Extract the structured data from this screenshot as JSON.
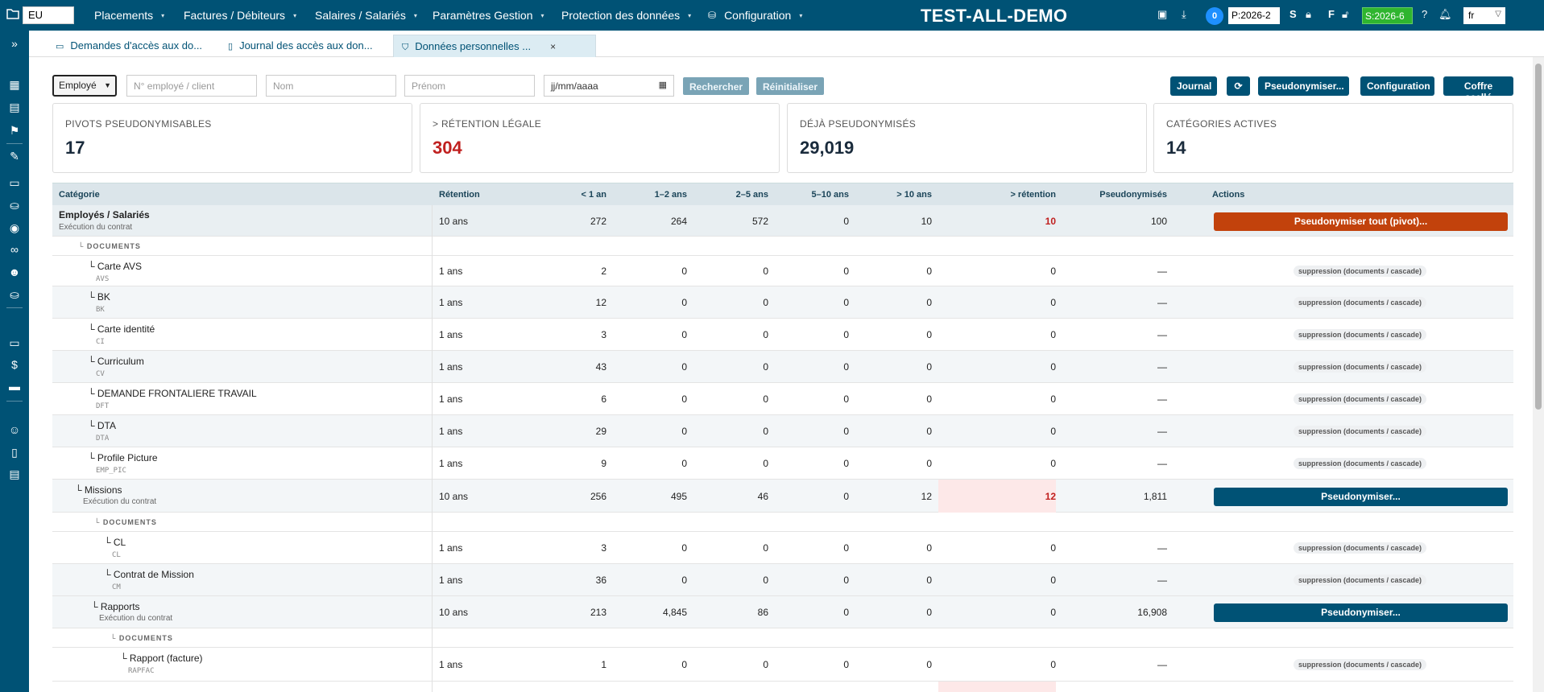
{
  "topbar": {
    "region": "EU",
    "menu": [
      "Placements",
      "Factures / Débiteurs",
      "Salaires / Salariés",
      "Paramètres Gestion",
      "Protection des données",
      "Configuration"
    ],
    "brand": "TEST-ALL-DEMO",
    "notif_count": "0",
    "period_p": "P:2026-2",
    "s_label": "S",
    "f_label": "F",
    "period_s": "S:2026-6",
    "lang": "fr"
  },
  "tabs": [
    {
      "label": "Demandes d'accès aux do...",
      "icon": "inbox-icon"
    },
    {
      "label": "Journal des accès aux don...",
      "icon": "file-icon"
    },
    {
      "label": "Données personnelles ...",
      "icon": "shield-icon"
    }
  ],
  "filters": {
    "type_select": "Employé",
    "employee_placeholder": "N° employé / client",
    "lastname_placeholder": "Nom",
    "firstname_placeholder": "Prénom",
    "date_placeholder": "jj/mm/aaaa",
    "search_label": "Rechercher",
    "reset_label": "Réinitialiser"
  },
  "toolbar": {
    "journal": "Journal",
    "pseudonymize": "Pseudonymiser...",
    "configuration": "Configuration",
    "vault": "Coffre scellé"
  },
  "stats": [
    {
      "label": "PIVOTS PSEUDONYMISABLES",
      "value": "17"
    },
    {
      "label": "> RÉTENTION LÉGALE",
      "value": "304"
    },
    {
      "label": "DÉJÀ PSEUDONYMISÉS",
      "value": "29,019"
    },
    {
      "label": "CATÉGORIES ACTIVES",
      "value": "14"
    }
  ],
  "table": {
    "headers": [
      "Catégorie",
      "Rétention",
      "< 1 an",
      "1–2 ans",
      "2–5 ans",
      "5–10 ans",
      "> 10 ans",
      "> rétention",
      "Pseudonymisés",
      "Actions"
    ],
    "documents_label": "DOCUMENTS",
    "chip_label": "suppression (documents / cascade)",
    "rows": {
      "emp": {
        "name": "Employés / Salariés",
        "sub": "Exécution du contrat",
        "ret": "10 ans",
        "c": [
          "272",
          "264",
          "572",
          "0",
          "10",
          "10",
          "100"
        ],
        "action": "Pseudonymiser tout (pivot)..."
      },
      "avs": {
        "name": "Carte AVS",
        "code": "AVS",
        "ret": "1 ans",
        "c": [
          "2",
          "0",
          "0",
          "0",
          "0",
          "0",
          "—"
        ]
      },
      "bk": {
        "name": "BK",
        "code": "BK",
        "ret": "1 ans",
        "c": [
          "12",
          "0",
          "0",
          "0",
          "0",
          "0",
          "—"
        ]
      },
      "ci": {
        "name": "Carte identité",
        "code": "CI",
        "ret": "1 ans",
        "c": [
          "3",
          "0",
          "0",
          "0",
          "0",
          "0",
          "—"
        ]
      },
      "cv": {
        "name": "Curriculum",
        "code": "CV",
        "ret": "1 ans",
        "c": [
          "43",
          "0",
          "0",
          "0",
          "0",
          "0",
          "—"
        ]
      },
      "dft": {
        "name": "DEMANDE FRONTALIERE TRAVAIL",
        "code": "DFT",
        "ret": "1 ans",
        "c": [
          "6",
          "0",
          "0",
          "0",
          "0",
          "0",
          "—"
        ]
      },
      "dta": {
        "name": "DTA",
        "code": "DTA",
        "ret": "1 ans",
        "c": [
          "29",
          "0",
          "0",
          "0",
          "0",
          "0",
          "—"
        ]
      },
      "pic": {
        "name": "Profile Picture",
        "code": "EMP_PIC",
        "ret": "1 ans",
        "c": [
          "9",
          "0",
          "0",
          "0",
          "0",
          "0",
          "—"
        ]
      },
      "mis": {
        "name": "Missions",
        "sub": "Exécution du contrat",
        "ret": "10 ans",
        "c": [
          "256",
          "495",
          "46",
          "0",
          "12",
          "12",
          "1,811"
        ],
        "action": "Pseudonymiser..."
      },
      "cl": {
        "name": "CL",
        "code": "CL",
        "ret": "1 ans",
        "c": [
          "3",
          "0",
          "0",
          "0",
          "0",
          "0",
          "—"
        ]
      },
      "cm": {
        "name": "Contrat de Mission",
        "code": "CM",
        "ret": "1 ans",
        "c": [
          "36",
          "0",
          "0",
          "0",
          "0",
          "0",
          "—"
        ]
      },
      "rap": {
        "name": "Rapports",
        "sub": "Exécution du contrat",
        "ret": "10 ans",
        "c": [
          "213",
          "4,845",
          "86",
          "0",
          "0",
          "0",
          "16,908"
        ],
        "action": "Pseudonymiser..."
      },
      "rapfac": {
        "name": "Rapport (facture)",
        "code": "RAPFAC",
        "ret": "1 ans",
        "c": [
          "1",
          "0",
          "0",
          "0",
          "0",
          "0",
          "—"
        ]
      }
    }
  }
}
